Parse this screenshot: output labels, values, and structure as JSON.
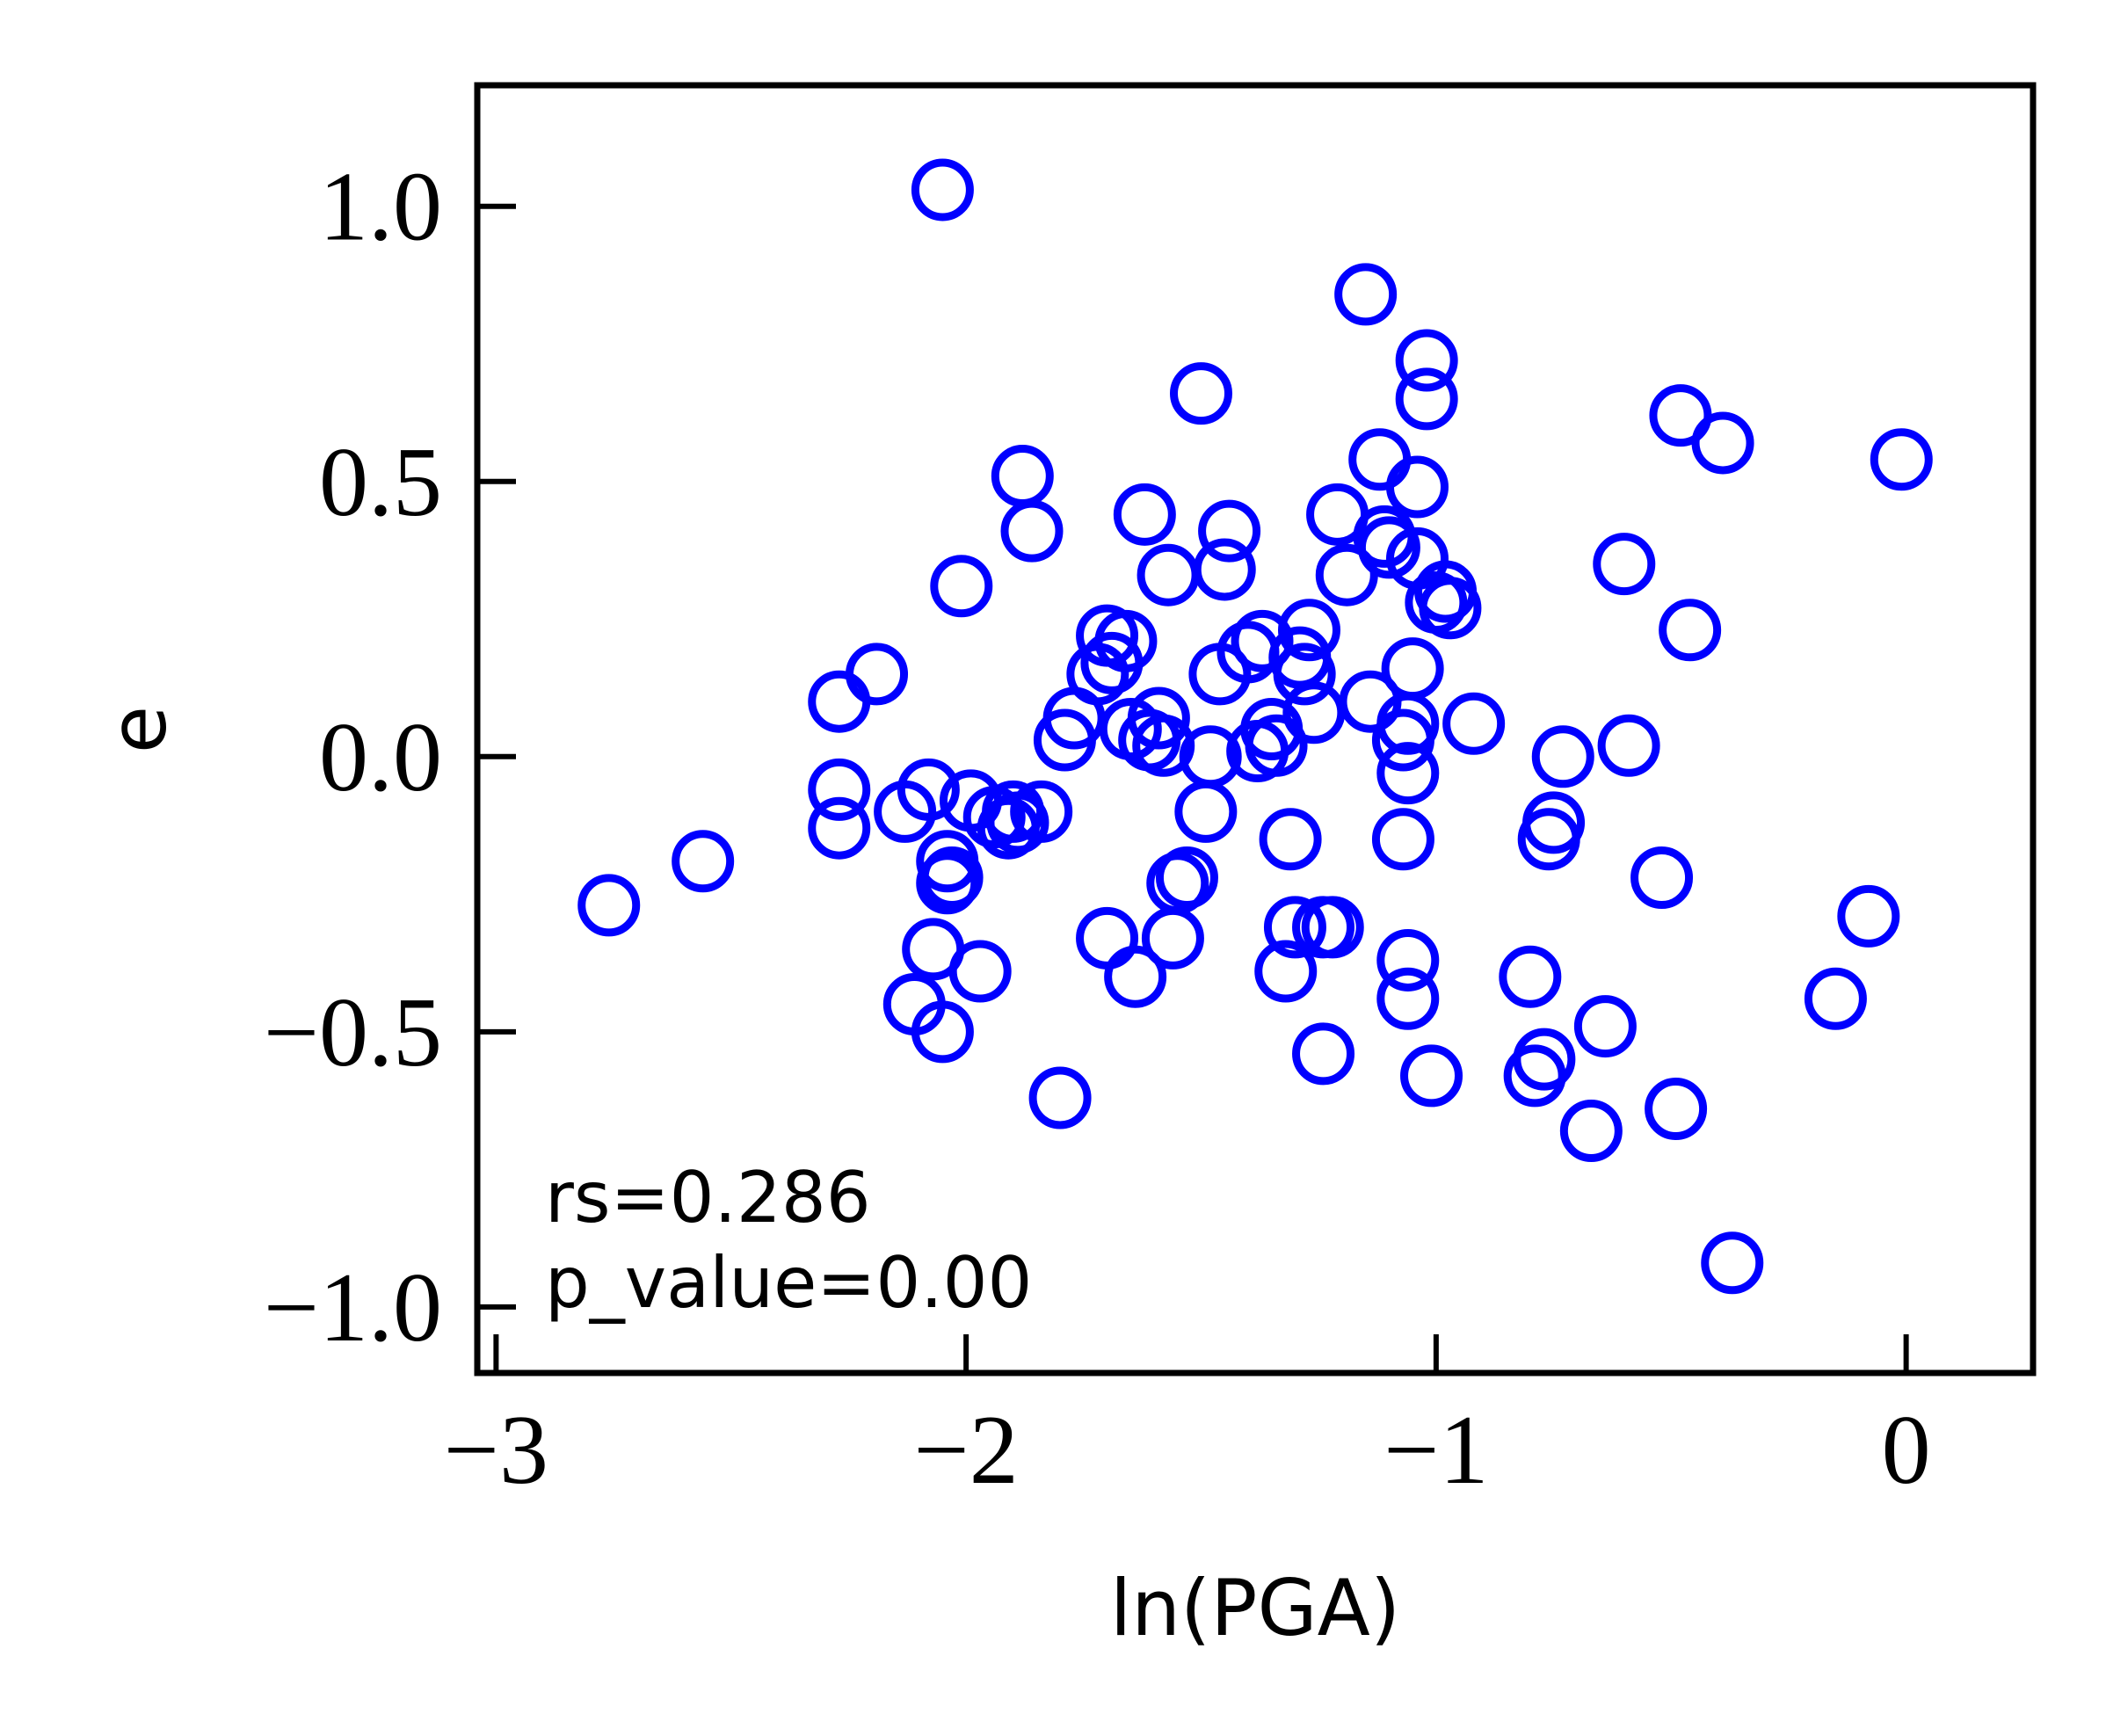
{
  "chart_data": {
    "type": "scatter",
    "xlabel": "ln(PGA)",
    "ylabel": "e",
    "xlim": [
      -3.04,
      0.27
    ],
    "ylim": [
      -1.12,
      1.22
    ],
    "x_ticks": [
      -3,
      -2,
      -1,
      0
    ],
    "x_tick_labels": [
      "−3",
      "−2",
      "−1",
      "0"
    ],
    "y_ticks": [
      -1.0,
      -0.5,
      0.0,
      0.5,
      1.0
    ],
    "y_tick_labels": [
      "−1.0",
      "−0.5",
      "0.0",
      "0.5",
      "1.0"
    ],
    "grid": false,
    "marker": "open-circle",
    "color": "#0000ff",
    "annotations": [
      "rs=0.286",
      "p_value=0.00"
    ],
    "points": [
      [
        -2.76,
        -0.27
      ],
      [
        -2.56,
        -0.19
      ],
      [
        -2.27,
        0.1
      ],
      [
        -2.27,
        -0.06
      ],
      [
        -2.27,
        -0.13
      ],
      [
        -2.19,
        0.15
      ],
      [
        -2.13,
        -0.1
      ],
      [
        -2.11,
        -0.45
      ],
      [
        -2.08,
        -0.06
      ],
      [
        -2.07,
        -0.35
      ],
      [
        -2.05,
        -0.5
      ],
      [
        -2.05,
        1.03
      ],
      [
        -2.04,
        -0.19
      ],
      [
        -2.04,
        -0.23
      ],
      [
        -2.03,
        -0.22
      ],
      [
        -2.01,
        0.31
      ],
      [
        -1.99,
        -0.08
      ],
      [
        -1.97,
        -0.39
      ],
      [
        -1.94,
        -0.11
      ],
      [
        -1.91,
        -0.13
      ],
      [
        -1.9,
        -0.1
      ],
      [
        -1.89,
        -0.12
      ],
      [
        -1.88,
        0.51
      ],
      [
        -1.86,
        0.41
      ],
      [
        -1.84,
        -0.1
      ],
      [
        -1.8,
        -0.62
      ],
      [
        -1.79,
        0.03
      ],
      [
        -1.77,
        0.07
      ],
      [
        -1.72,
        0.15
      ],
      [
        -1.7,
        0.22
      ],
      [
        -1.7,
        -0.33
      ],
      [
        -1.69,
        0.17
      ],
      [
        -1.66,
        0.21
      ],
      [
        -1.65,
        0.05
      ],
      [
        -1.64,
        -0.4
      ],
      [
        -1.62,
        0.44
      ],
      [
        -1.61,
        0.03
      ],
      [
        -1.59,
        0.07
      ],
      [
        -1.58,
        0.02
      ],
      [
        -1.57,
        0.33
      ],
      [
        -1.56,
        -0.33
      ],
      [
        -1.55,
        -0.23
      ],
      [
        -1.53,
        -0.22
      ],
      [
        -1.5,
        0.66
      ],
      [
        -1.49,
        -0.1
      ],
      [
        -1.48,
        0.0
      ],
      [
        -1.46,
        0.15
      ],
      [
        -1.45,
        0.34
      ],
      [
        -1.44,
        0.41
      ],
      [
        -1.4,
        0.19
      ],
      [
        -1.38,
        0.01
      ],
      [
        -1.37,
        0.21
      ],
      [
        -1.35,
        0.05
      ],
      [
        -1.34,
        0.02
      ],
      [
        -1.32,
        -0.39
      ],
      [
        -1.31,
        -0.15
      ],
      [
        -1.3,
        -0.31
      ],
      [
        -1.29,
        0.18
      ],
      [
        -1.28,
        0.15
      ],
      [
        -1.27,
        0.23
      ],
      [
        -1.26,
        0.08
      ],
      [
        -1.24,
        -0.31
      ],
      [
        -1.24,
        -0.54
      ],
      [
        -1.22,
        -0.31
      ],
      [
        -1.21,
        0.44
      ],
      [
        -1.19,
        0.33
      ],
      [
        -1.15,
        0.84
      ],
      [
        -1.14,
        0.1
      ],
      [
        -1.12,
        0.54
      ],
      [
        -1.11,
        0.4
      ],
      [
        -1.1,
        0.38
      ],
      [
        -1.07,
        0.03
      ],
      [
        -1.07,
        -0.15
      ],
      [
        -1.06,
        -0.03
      ],
      [
        -1.06,
        0.06
      ],
      [
        -1.06,
        -0.37
      ],
      [
        -1.06,
        -0.44
      ],
      [
        -1.05,
        0.16
      ],
      [
        -1.04,
        0.49
      ],
      [
        -1.04,
        0.36
      ],
      [
        -1.02,
        0.72
      ],
      [
        -1.02,
        0.65
      ],
      [
        -1.01,
        -0.58
      ],
      [
        -1.0,
        0.28
      ],
      [
        -0.98,
        0.3
      ],
      [
        -0.97,
        0.27
      ],
      [
        -0.92,
        0.06
      ],
      [
        -0.8,
        -0.4
      ],
      [
        -0.79,
        -0.58
      ],
      [
        -0.77,
        -0.55
      ],
      [
        -0.76,
        -0.15
      ],
      [
        -0.75,
        -0.12
      ],
      [
        -0.73,
        0.0
      ],
      [
        -0.67,
        -0.68
      ],
      [
        -0.64,
        -0.49
      ],
      [
        -0.6,
        0.35
      ],
      [
        -0.59,
        0.02
      ],
      [
        -0.52,
        -0.22
      ],
      [
        -0.49,
        -0.64
      ],
      [
        -0.48,
        0.62
      ],
      [
        -0.46,
        0.23
      ],
      [
        -0.39,
        0.57
      ],
      [
        -0.37,
        -0.92
      ],
      [
        -0.15,
        -0.44
      ],
      [
        -0.08,
        -0.29
      ],
      [
        -0.01,
        0.54
      ]
    ]
  }
}
